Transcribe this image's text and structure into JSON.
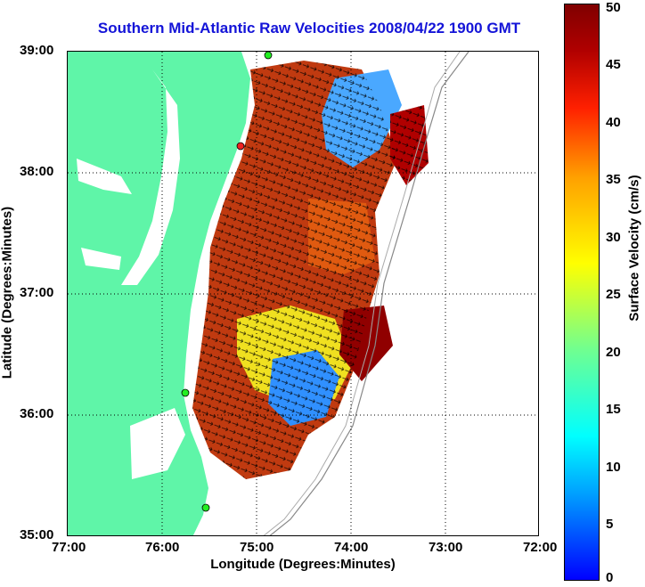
{
  "title": "Southern Mid-Atlantic Raw Velocities 2008/04/22 1900 GMT",
  "x_axis": {
    "label": "Longitude (Degrees:Minutes)",
    "ticks": [
      "77:00",
      "76:00",
      "75:00",
      "74:00",
      "73:00",
      "72:00"
    ]
  },
  "y_axis": {
    "label": "Latitude (Degrees:Minutes)",
    "ticks": [
      "39:00",
      "38:00",
      "37:00",
      "36:00",
      "35:00"
    ]
  },
  "colorbar": {
    "label": "Surface Velocity (cm/s)",
    "ticks": [
      "50",
      "45",
      "40",
      "35",
      "30",
      "25",
      "20",
      "15",
      "10",
      "5",
      "0"
    ]
  },
  "colors": {
    "land": "#5ff5a8",
    "title": "#1414d8"
  }
}
